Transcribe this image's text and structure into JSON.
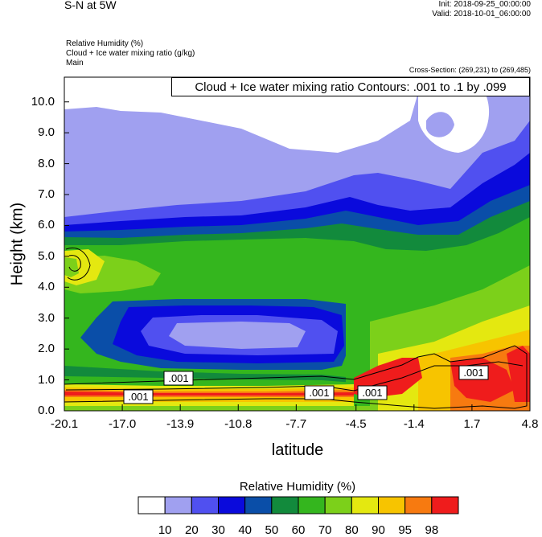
{
  "header": {
    "title": "S-N at 5W",
    "init": "Init: 2018-09-25_00:00:00",
    "valid": "Valid: 2018-10-01_06:00:00",
    "fields": [
      "Relative Humidity   (%)",
      "Cloud + Ice water mixing ratio   (g/kg)",
      "Main"
    ],
    "cross_section": "Cross-Section: (269,231) to (269,485)"
  },
  "chart_data": {
    "type": "heatmap",
    "title": "Cloud + Ice water mixing ratio Contours: .001 to .1 by .099",
    "xlabel": "latitude",
    "ylabel": "Height (km)",
    "x_ticks": [
      "-20.1",
      "-17.0",
      "-13.9",
      "-10.8",
      "-7.7",
      "-4.5",
      "-1.4",
      "1.7",
      "4.8"
    ],
    "y_ticks": [
      "0.0",
      "1.0",
      "2.0",
      "3.0",
      "4.0",
      "5.0",
      "6.0",
      "7.0",
      "8.0",
      "9.0",
      "10.0"
    ],
    "xlim": [
      -20.1,
      4.8
    ],
    "ylim": [
      0,
      10.8
    ],
    "contour_labels": [
      ".001",
      ".001",
      ".001",
      ".001",
      ".001"
    ],
    "colorbar": {
      "title": "Relative Humidity  (%)",
      "levels": [
        "10",
        "20",
        "30",
        "40",
        "50",
        "60",
        "70",
        "80",
        "90",
        "95",
        "98"
      ],
      "colors": [
        "#ffffff",
        "#a0a0f0",
        "#5050f0",
        "#0a0adc",
        "#0a4ea8",
        "#128a3c",
        "#34b61e",
        "#7cd01a",
        "#e4e810",
        "#f7c400",
        "#f77a10",
        "#ef1c1c"
      ]
    }
  }
}
